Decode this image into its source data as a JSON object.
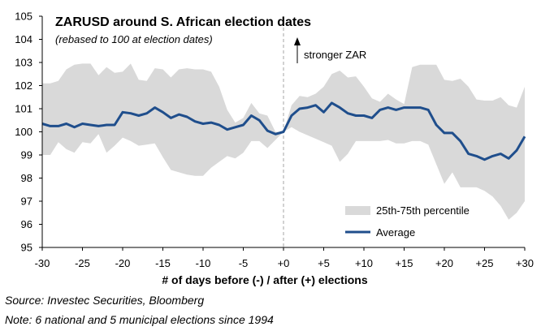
{
  "chart_data": {
    "type": "line",
    "title": "ZARUSD around S. African election dates",
    "subtitle": "(rebased to 100 at election dates)",
    "xlabel": "# of days before (-) / after (+) elections",
    "ylabel": "",
    "xlim": [
      -30,
      30
    ],
    "ylim": [
      95,
      105
    ],
    "x_ticks": [
      "-30",
      "-25",
      "-20",
      "-15",
      "-10",
      "-5",
      "+0",
      "+5",
      "+10",
      "+15",
      "+20",
      "+25",
      "+30"
    ],
    "y_ticks": [
      "95",
      "96",
      "97",
      "98",
      "99",
      "100",
      "101",
      "102",
      "103",
      "104",
      "105"
    ],
    "annotation": "stronger ZAR",
    "vline_x": 0,
    "legend": [
      "25th-75th percentile",
      "Average"
    ],
    "legend_position": "bottom-right",
    "colors": {
      "band": "#d9d9d9",
      "average": "#1f4e8c",
      "vline": "#a6a6a6"
    },
    "x": [
      -30,
      -29,
      -28,
      -27,
      -26,
      -25,
      -24,
      -23,
      -22,
      -21,
      -20,
      -19,
      -18,
      -17,
      -16,
      -15,
      -14,
      -13,
      -12,
      -11,
      -10,
      -9,
      -8,
      -7,
      -6,
      -5,
      -4,
      -3,
      -2,
      -1,
      0,
      1,
      2,
      3,
      4,
      5,
      6,
      7,
      8,
      9,
      10,
      11,
      12,
      13,
      14,
      15,
      16,
      17,
      18,
      19,
      20,
      21,
      22,
      23,
      24,
      25,
      26,
      27,
      28,
      29,
      30
    ],
    "series": [
      {
        "name": "Average",
        "values": [
          100.35,
          100.25,
          100.25,
          100.35,
          100.2,
          100.35,
          100.3,
          100.25,
          100.3,
          100.3,
          100.85,
          100.8,
          100.7,
          100.8,
          101.05,
          100.85,
          100.6,
          100.75,
          100.65,
          100.45,
          100.35,
          100.4,
          100.3,
          100.1,
          100.2,
          100.3,
          100.7,
          100.5,
          100.05,
          99.9,
          100.0,
          100.7,
          101.0,
          101.05,
          101.15,
          100.85,
          101.25,
          101.05,
          100.8,
          100.7,
          100.7,
          100.6,
          100.95,
          101.05,
          100.95,
          101.05,
          101.05,
          101.05,
          100.95,
          100.3,
          99.95,
          99.95,
          99.6,
          99.05,
          98.95,
          98.8,
          98.95,
          99.05,
          98.85,
          99.2,
          99.8
        ]
      },
      {
        "name": "25th percentile",
        "values": [
          99.0,
          99.0,
          99.55,
          99.25,
          99.1,
          99.55,
          99.5,
          99.9,
          99.1,
          99.4,
          99.75,
          99.6,
          99.4,
          99.45,
          99.5,
          98.9,
          98.35,
          98.25,
          98.15,
          98.1,
          98.1,
          98.45,
          98.7,
          98.95,
          98.85,
          99.1,
          99.6,
          99.6,
          99.3,
          99.65,
          100.0,
          100.2,
          100.0,
          99.85,
          99.7,
          99.55,
          99.4,
          98.7,
          99.05,
          99.6,
          99.6,
          99.6,
          99.6,
          99.65,
          99.5,
          99.5,
          99.6,
          99.6,
          99.45,
          98.6,
          97.75,
          98.25,
          97.6,
          97.6,
          97.6,
          97.45,
          97.2,
          96.8,
          96.2,
          96.5,
          97.0
        ]
      },
      {
        "name": "75th percentile",
        "values": [
          102.1,
          102.1,
          102.2,
          102.7,
          102.9,
          102.95,
          102.95,
          102.45,
          102.8,
          102.55,
          102.6,
          102.95,
          102.25,
          102.2,
          102.75,
          102.7,
          102.35,
          102.7,
          102.75,
          102.7,
          102.7,
          102.6,
          101.95,
          100.95,
          100.4,
          100.6,
          101.25,
          100.8,
          100.7,
          100.0,
          100.0,
          101.15,
          101.55,
          101.5,
          101.65,
          101.95,
          102.5,
          102.65,
          102.35,
          102.4,
          101.95,
          101.45,
          101.3,
          101.65,
          101.4,
          101.2,
          102.8,
          102.9,
          102.9,
          102.9,
          102.25,
          102.2,
          102.3,
          101.95,
          101.4,
          101.35,
          101.35,
          101.5,
          101.15,
          101.05,
          101.95
        ]
      }
    ]
  },
  "notes": {
    "source": "Source: Investec Securities, Bloomberg",
    "note": "Note: 6 national and 5 municipal elections since 1994"
  }
}
